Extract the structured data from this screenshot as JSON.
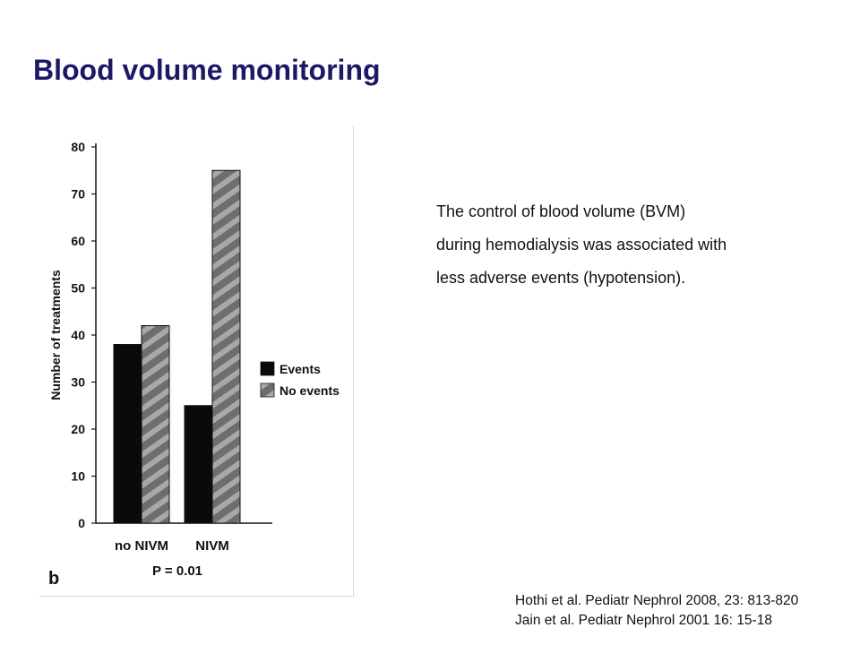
{
  "slide": {
    "title": "Blood volume monitoring",
    "description_lines": [
      "The control of blood volume (BVM)",
      "during hemodialysis was associated with",
      "less adverse events (hypotension)."
    ],
    "references": [
      "Hothi et al. Pediatr Nephrol 2008, 23: 813-820",
      "Jain et al. Pediatr Nephrol 2001 16: 15-18"
    ]
  },
  "colors": {
    "title": "#1a1a66",
    "events": "#0a0a0a",
    "no_events": "#8a8a8a"
  },
  "chart_data": {
    "type": "bar",
    "categories": [
      "no NIVM",
      "NIVM"
    ],
    "series": [
      {
        "name": "Events",
        "values": [
          38,
          25
        ]
      },
      {
        "name": "No events",
        "values": [
          42,
          75
        ]
      }
    ],
    "ylabel": "Number of treatments",
    "xlabel": "",
    "ylim": [
      0,
      80
    ],
    "yticks": [
      0,
      10,
      20,
      30,
      40,
      50,
      60,
      70,
      80
    ],
    "grid": false,
    "legend": "right",
    "annotation": "P = 0.01",
    "panel_label": "b"
  }
}
